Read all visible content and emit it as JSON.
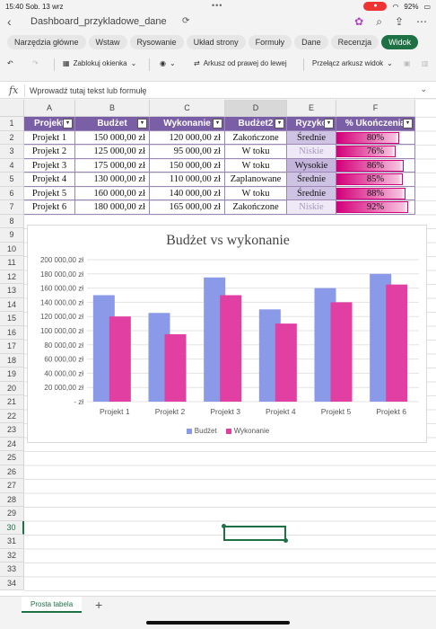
{
  "status": {
    "time": "15:40",
    "date": "Sob. 13 wrz",
    "battery": "92%"
  },
  "app": {
    "file_name": "Dashboard_przykladowe_dane"
  },
  "tabs": [
    {
      "label": "Narzędzia główne"
    },
    {
      "label": "Wstaw"
    },
    {
      "label": "Rysowanie"
    },
    {
      "label": "Układ strony"
    },
    {
      "label": "Formuły"
    },
    {
      "label": "Dane"
    },
    {
      "label": "Recenzja"
    },
    {
      "label": "Widok",
      "active": true
    }
  ],
  "toolbar": {
    "freeze_label": "Zablokuj okienka",
    "rtl_label": "Arkusz od prawej do lewej",
    "switch_label": "Przełącz arkusz widok"
  },
  "formula": {
    "placeholder": "Wprowadź tutaj tekst lub formułę"
  },
  "columns": [
    "A",
    "B",
    "C",
    "D",
    "E",
    "F"
  ],
  "rows": [
    "1",
    "2",
    "3",
    "4",
    "5",
    "6",
    "7",
    "8",
    "9",
    "10",
    "11",
    "12",
    "13",
    "14",
    "15",
    "16",
    "17",
    "18",
    "19",
    "20",
    "21",
    "22",
    "23",
    "24",
    "25",
    "26",
    "27",
    "28",
    "29",
    "30",
    "31",
    "32",
    "33",
    "34"
  ],
  "table": {
    "headers": [
      "Projekt",
      "Budżet",
      "Wykonanie",
      "Budżet2",
      "Ryzyko",
      "% Ukończenia"
    ],
    "rows": [
      {
        "projekt": "Projekt 1",
        "budzet": "150 000,00 zł",
        "wykonanie": "120 000,00 zł",
        "status": "Zakończone",
        "ryzyko": "Średnie",
        "risk_level": "mid",
        "pct": "80%",
        "pct_value": 0.8
      },
      {
        "projekt": "Projekt 2",
        "budzet": "125 000,00 zł",
        "wykonanie": "95 000,00 zł",
        "status": "W toku",
        "ryzyko": "Niskie",
        "risk_level": "low",
        "pct": "76%",
        "pct_value": 0.76
      },
      {
        "projekt": "Projekt 3",
        "budzet": "175 000,00 zł",
        "wykonanie": "150 000,00 zł",
        "status": "W toku",
        "ryzyko": "Wysokie",
        "risk_level": "high",
        "pct": "86%",
        "pct_value": 0.86
      },
      {
        "projekt": "Projekt 4",
        "budzet": "130 000,00 zł",
        "wykonanie": "110 000,00 zł",
        "status": "Zaplanowane",
        "ryzyko": "Średnie",
        "risk_level": "mid",
        "pct": "85%",
        "pct_value": 0.85
      },
      {
        "projekt": "Projekt 5",
        "budzet": "160 000,00 zł",
        "wykonanie": "140 000,00 zł",
        "status": "W toku",
        "ryzyko": "Średnie",
        "risk_level": "mid",
        "pct": "88%",
        "pct_value": 0.88
      },
      {
        "projekt": "Projekt 6",
        "budzet": "180 000,00 zł",
        "wykonanie": "165 000,00 zł",
        "status": "Zakończone",
        "ryzyko": "Niskie",
        "risk_level": "low",
        "pct": "92%",
        "pct_value": 0.92
      }
    ]
  },
  "chart_data": {
    "type": "bar",
    "title": "Budżet vs wykonanie",
    "categories": [
      "Projekt 1",
      "Projekt 2",
      "Projekt 3",
      "Projekt 4",
      "Projekt 5",
      "Projekt 6"
    ],
    "series": [
      {
        "name": "Budżet",
        "values": [
          150000,
          125000,
          175000,
          130000,
          160000,
          180000
        ],
        "color": "#8b9ae8"
      },
      {
        "name": "Wykonanie",
        "values": [
          120000,
          95000,
          150000,
          110000,
          140000,
          165000
        ],
        "color": "#e23fa2"
      }
    ],
    "yticks": [
      "200 000,00 zł",
      "180 000,00 zł",
      "160 000,00 zł",
      "140 000,00 zł",
      "120 000,00 zł",
      "100 000,00 zł",
      "80 000,00 zł",
      "60 000,00 zł",
      "40 000,00 zł",
      "20 000,00 zł",
      "- zł"
    ],
    "ylim": [
      0,
      200000
    ],
    "grid": true,
    "legend": "bottom"
  },
  "sheets": [
    {
      "label": "Prosta tabela"
    }
  ]
}
